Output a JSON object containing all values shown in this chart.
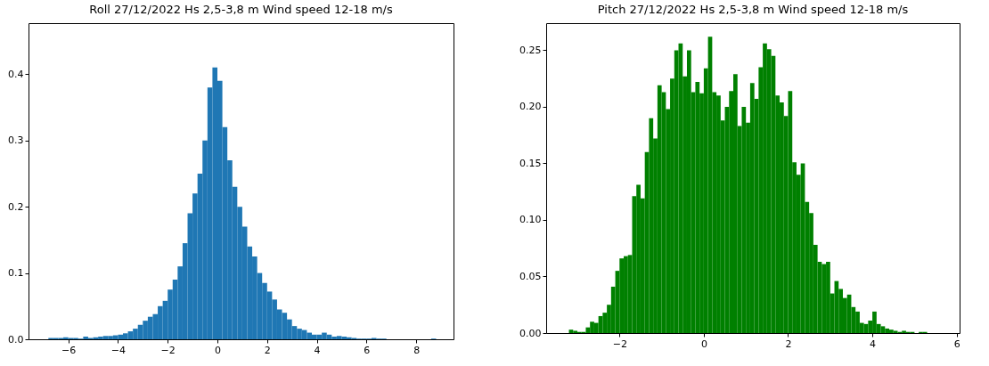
{
  "chart_data": [
    {
      "type": "histogram",
      "title": "Roll 27/12/2022 Hs 2,5-3,8 m Wind speed 12-18 m/s",
      "color": "#1f77b4",
      "bins": [
        -7.0,
        -6.8,
        -6.6,
        -6.4,
        -6.2,
        -6.0,
        -5.8,
        -5.6,
        -5.4,
        -5.2,
        -5.0,
        -4.8,
        -4.6,
        -4.4,
        -4.2,
        -4.0,
        -3.8,
        -3.6,
        -3.4,
        -3.2,
        -3.0,
        -2.8,
        -2.6,
        -2.4,
        -2.2,
        -2.0,
        -1.8,
        -1.6,
        -1.4,
        -1.2,
        -1.0,
        -0.8,
        -0.6,
        -0.4,
        -0.2,
        0.0,
        0.2,
        0.4,
        0.6,
        0.8,
        1.0,
        1.2,
        1.4,
        1.6,
        1.8,
        2.0,
        2.2,
        2.4,
        2.6,
        2.8,
        3.0,
        3.2,
        3.4,
        3.6,
        3.8,
        4.0,
        4.2,
        4.4,
        4.6,
        4.8,
        5.0,
        5.2,
        5.4,
        5.6,
        5.8,
        6.0,
        6.2,
        6.4,
        6.6,
        6.8,
        7.0,
        7.2,
        7.4,
        7.6,
        7.8,
        8.0,
        8.2,
        8.4,
        8.6,
        8.8
      ],
      "values": [
        0,
        0.002,
        0.002,
        0.002,
        0.003,
        0.002,
        0.002,
        0.001,
        0.004,
        0.002,
        0.003,
        0.004,
        0.005,
        0.005,
        0.006,
        0.007,
        0.009,
        0.012,
        0.016,
        0.022,
        0.028,
        0.034,
        0.038,
        0.05,
        0.058,
        0.075,
        0.09,
        0.11,
        0.145,
        0.19,
        0.22,
        0.25,
        0.3,
        0.38,
        0.41,
        0.39,
        0.32,
        0.27,
        0.23,
        0.2,
        0.17,
        0.14,
        0.125,
        0.1,
        0.085,
        0.072,
        0.06,
        0.045,
        0.04,
        0.03,
        0.02,
        0.016,
        0.014,
        0.01,
        0.007,
        0.007,
        0.01,
        0.007,
        0.004,
        0.005,
        0.004,
        0.003,
        0.002,
        0.001,
        0.001,
        0.001,
        0.002,
        0.001,
        0.001,
        0,
        0,
        0,
        0,
        0,
        0,
        0,
        0,
        0,
        0.001
      ],
      "xlim": [
        -7.6,
        9.5
      ],
      "xticks": [
        -6,
        -4,
        -2,
        0,
        2,
        4,
        6,
        8
      ],
      "ylim": [
        0,
        0.477
      ],
      "yticks": [
        {
          "value": 0,
          "label": "0.0"
        },
        0.1,
        0.2,
        0.3,
        0.4
      ],
      "grid": false
    },
    {
      "type": "histogram",
      "title": "Pitch 27/12/2022 Hs 2,5-3,8 m Wind speed 12-18 m/s",
      "color": "#008000",
      "bins": [
        -3.2,
        -3.1,
        -3.0,
        -2.9,
        -2.8,
        -2.7,
        -2.6,
        -2.5,
        -2.4,
        -2.3,
        -2.2,
        -2.1,
        -2.0,
        -1.9,
        -1.8,
        -1.7,
        -1.6,
        -1.5,
        -1.4,
        -1.3,
        -1.2,
        -1.1,
        -1.0,
        -0.9,
        -0.8,
        -0.7,
        -0.6,
        -0.5,
        -0.4,
        -0.3,
        -0.2,
        -0.1,
        0.0,
        0.1,
        0.2,
        0.3,
        0.4,
        0.5,
        0.6,
        0.7,
        0.8,
        0.9,
        1.0,
        1.1,
        1.2,
        1.3,
        1.4,
        1.5,
        1.6,
        1.7,
        1.8,
        1.9,
        2.0,
        2.1,
        2.2,
        2.3,
        2.4,
        2.5,
        2.6,
        2.7,
        2.8,
        2.9,
        3.0,
        3.1,
        3.2,
        3.3,
        3.4,
        3.5,
        3.6,
        3.7,
        3.8,
        3.9,
        4.0,
        4.1,
        4.2,
        4.3,
        4.4,
        4.5,
        4.6,
        4.7,
        4.8,
        4.9,
        5.0,
        5.1,
        5.2,
        5.3,
        5.4,
        5.5,
        5.6
      ],
      "values": [
        0.003,
        0.002,
        0.001,
        0.001,
        0.005,
        0.01,
        0.009,
        0.015,
        0.018,
        0.025,
        0.041,
        0.055,
        0.066,
        0.068,
        0.069,
        0.121,
        0.131,
        0.119,
        0.16,
        0.19,
        0.172,
        0.219,
        0.213,
        0.198,
        0.225,
        0.25,
        0.256,
        0.227,
        0.25,
        0.213,
        0.222,
        0.212,
        0.234,
        0.262,
        0.213,
        0.21,
        0.188,
        0.2,
        0.214,
        0.229,
        0.183,
        0.2,
        0.186,
        0.221,
        0.207,
        0.235,
        0.256,
        0.251,
        0.245,
        0.21,
        0.204,
        0.192,
        0.214,
        0.151,
        0.14,
        0.15,
        0.116,
        0.106,
        0.078,
        0.063,
        0.061,
        0.063,
        0.035,
        0.046,
        0.039,
        0.031,
        0.034,
        0.023,
        0.019,
        0.009,
        0.008,
        0.011,
        0.019,
        0.008,
        0.006,
        0.004,
        0.003,
        0.002,
        0.001,
        0.002,
        0.001,
        0.001,
        0,
        0.001,
        0.001,
        0,
        0,
        0
      ],
      "xlim": [
        -3.74,
        6.07
      ],
      "xticks": [
        -2,
        0,
        2,
        4,
        6
      ],
      "ylim": [
        0,
        0.274
      ],
      "yticks": [
        {
          "value": 0,
          "label": "0.00"
        },
        {
          "value": 0.05,
          "label": "0.05"
        },
        {
          "value": 0.1,
          "label": "0.10"
        },
        {
          "value": 0.15,
          "label": "0.15"
        },
        {
          "value": 0.2,
          "label": "0.20"
        },
        {
          "value": 0.25,
          "label": "0.25"
        }
      ],
      "grid": false
    }
  ]
}
